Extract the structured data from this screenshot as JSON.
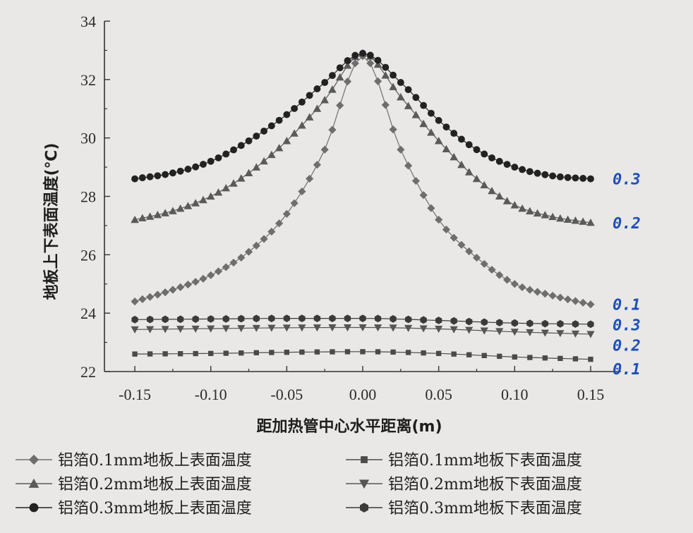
{
  "chart_data": {
    "type": "line",
    "xlabel": "距加热管中心水平距离(m)",
    "ylabel": "地板上下表面温度(℃)",
    "xlim": [
      -0.17,
      0.17
    ],
    "ylim": [
      22,
      34
    ],
    "xticks": [
      "-0.15",
      "-0.10",
      "-0.05",
      "0.00",
      "0.05",
      "0.10",
      "0.15"
    ],
    "xtick_values": [
      -0.15,
      -0.1,
      -0.05,
      0.0,
      0.05,
      0.1,
      0.15
    ],
    "yticks": [
      "22",
      "24",
      "26",
      "28",
      "30",
      "32",
      "34"
    ],
    "ytick_values": [
      22,
      24,
      26,
      28,
      30,
      32,
      34
    ],
    "legend_position": "bottom",
    "series": [
      {
        "name": "铝箔0.1mm地板上表面温度",
        "marker": "diamond",
        "color": "#6e6e6e",
        "x": [
          -0.15,
          -0.125,
          -0.1,
          -0.075,
          -0.05,
          -0.025,
          0.0,
          0.025,
          0.05,
          0.075,
          0.1,
          0.125,
          0.15
        ],
        "values": [
          24.4,
          24.8,
          25.3,
          26.1,
          27.4,
          29.6,
          32.8,
          29.6,
          27.2,
          25.9,
          25.0,
          24.6,
          24.3
        ]
      },
      {
        "name": "铝箔0.1mm地板下表面温度",
        "marker": "square",
        "color": "#4a4a4a",
        "x": [
          -0.15,
          -0.1,
          -0.05,
          0.0,
          0.05,
          0.1,
          0.15
        ],
        "values": [
          22.6,
          22.62,
          22.66,
          22.68,
          22.62,
          22.5,
          22.42
        ]
      },
      {
        "name": "铝箔0.2mm地板上表面温度",
        "marker": "triangle-up",
        "color": "#5a5a5a",
        "x": [
          -0.15,
          -0.125,
          -0.1,
          -0.075,
          -0.05,
          -0.025,
          0.0,
          0.025,
          0.05,
          0.075,
          0.1,
          0.125,
          0.15
        ],
        "values": [
          27.2,
          27.5,
          28.0,
          28.8,
          29.9,
          31.3,
          32.9,
          31.4,
          29.9,
          28.6,
          27.7,
          27.3,
          27.1
        ]
      },
      {
        "name": "铝箔0.2mm地板下表面温度",
        "marker": "triangle-down",
        "color": "#555555",
        "x": [
          -0.15,
          -0.1,
          -0.05,
          0.0,
          0.05,
          0.1,
          0.15
        ],
        "values": [
          23.44,
          23.47,
          23.5,
          23.51,
          23.46,
          23.36,
          23.28
        ]
      },
      {
        "name": "铝箔0.3mm地板上表面温度",
        "marker": "circle",
        "color": "#222222",
        "x": [
          -0.15,
          -0.125,
          -0.1,
          -0.075,
          -0.05,
          -0.025,
          0.0,
          0.025,
          0.05,
          0.075,
          0.1,
          0.125,
          0.15
        ],
        "values": [
          28.6,
          28.8,
          29.2,
          29.9,
          30.8,
          31.9,
          32.9,
          31.9,
          30.6,
          29.6,
          29.0,
          28.7,
          28.6
        ]
      },
      {
        "name": "铝箔0.3mm地板下表面温度",
        "marker": "hexagon",
        "color": "#3a3a3a",
        "x": [
          -0.15,
          -0.1,
          -0.05,
          0.0,
          0.05,
          0.1,
          0.15
        ],
        "values": [
          23.78,
          23.8,
          23.82,
          23.82,
          23.75,
          23.66,
          23.62
        ]
      }
    ],
    "annotations": [
      {
        "text": "0.3",
        "y": 28.6
      },
      {
        "text": "0.2",
        "y": 27.1
      },
      {
        "text": "0.1",
        "y": 24.3
      },
      {
        "text": "0.3",
        "y": 23.6
      },
      {
        "text": "0.2",
        "y": 22.9
      },
      {
        "text": "0.1",
        "y": 22.1
      }
    ]
  }
}
